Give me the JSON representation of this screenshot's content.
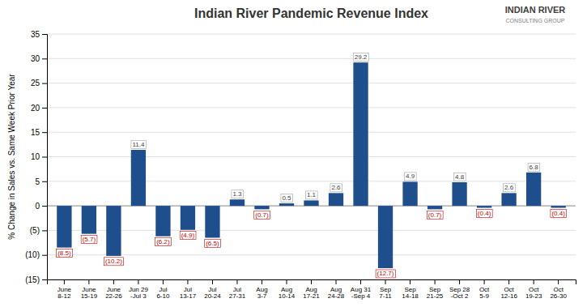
{
  "chart_data": {
    "type": "bar",
    "title": "Indian River Pandemic Revenue Index",
    "ylabel": "% Change in Sales vs. Same Week Prior Year",
    "categories": [
      "June\n8-12",
      "June\n15-19",
      "June\n22-26",
      "Jun 29\n-Jul 3",
      "Jul\n6-10",
      "Jul\n13-17",
      "Jul\n20-24",
      "Jul\n27-31",
      "Aug\n3-7",
      "Aug\n10-14",
      "Aug\n17-21",
      "Aug\n24-28",
      "Aug 31\n-Sep 4",
      "Sep\n7-11",
      "Sep\n14-18",
      "Sep\n21-25",
      "Sep 28\n-Oct 2",
      "Oct\n5-9",
      "Oct\n12-16",
      "Oct\n19-23",
      "Oct\n26-30"
    ],
    "values": [
      -8.5,
      -5.7,
      -10.2,
      11.4,
      -6.2,
      -4.9,
      -6.5,
      1.3,
      -0.7,
      0.5,
      1.1,
      2.6,
      29.2,
      -12.7,
      4.9,
      -0.7,
      4.8,
      -0.4,
      2.6,
      6.8,
      -0.4
    ],
    "value_labels": [
      "(8.5)",
      "(5.7)",
      "(10.2)",
      "11.4",
      "(6.2)",
      "(4.9)",
      "(6.5)",
      "1.3",
      "(0.7)",
      "0.5",
      "1.1",
      "2.6",
      "29.2",
      "(12.7)",
      "4.9",
      "(0.7)",
      "4.8",
      "(0.4)",
      "2.6",
      "6.8",
      "(0.4)"
    ],
    "color": "#1F4E8C",
    "ylim": [
      -15,
      35
    ],
    "yticks": [
      {
        "value": -15,
        "label": "(15)"
      },
      {
        "value": -10,
        "label": "(10)"
      },
      {
        "value": -5,
        "label": "(5)"
      },
      0,
      5,
      10,
      15,
      20,
      25,
      30,
      35
    ],
    "grid": true,
    "data_labels": true,
    "annotations": [
      "INDIAN RIVER",
      "CONSULTING GROUP"
    ]
  }
}
